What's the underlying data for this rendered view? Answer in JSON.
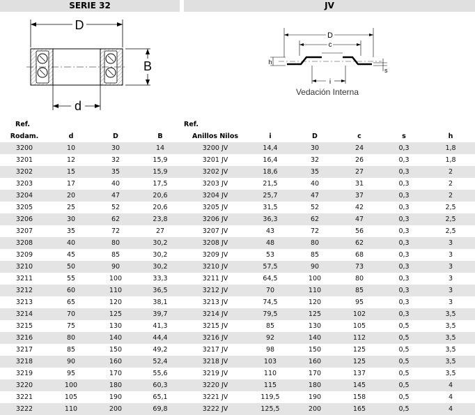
{
  "left_title": "SERIE 32",
  "right_title": "JV",
  "left_drawing": {
    "label_outer": "D",
    "label_height": "B",
    "label_inner": "d"
  },
  "right_drawing": {
    "label_outer": "D",
    "label_c": "c",
    "label_h": "h",
    "label_i": "i",
    "label_s": "s",
    "caption": "Vedación Interna"
  },
  "header_row1": {
    "ref_left": "Ref.",
    "ref_right": "Ref."
  },
  "header_row2": [
    "Rodam.",
    "d",
    "D",
    "B",
    "Anillos Nilos",
    "i",
    "D",
    "c",
    "s",
    "h"
  ],
  "rows": [
    [
      "3200",
      "10",
      "30",
      "14",
      "3200 JV",
      "14,4",
      "30",
      "24",
      "0,3",
      "1,8"
    ],
    [
      "3201",
      "12",
      "32",
      "15,9",
      "3201 JV",
      "16,4",
      "32",
      "26",
      "0,3",
      "1,8"
    ],
    [
      "3202",
      "15",
      "35",
      "15,9",
      "3202 JV",
      "18,6",
      "35",
      "27",
      "0,3",
      "2"
    ],
    [
      "3203",
      "17",
      "40",
      "17,5",
      "3203 JV",
      "21,5",
      "40",
      "31",
      "0,3",
      "2"
    ],
    [
      "3204",
      "20",
      "47",
      "20,6",
      "3204 JV",
      "25,7",
      "47",
      "37",
      "0,3",
      "2"
    ],
    [
      "3205",
      "25",
      "52",
      "20,6",
      "3205 JV",
      "31,5",
      "52",
      "42",
      "0,3",
      "2,5"
    ],
    [
      "3206",
      "30",
      "62",
      "23,8",
      "3206 JV",
      "36,3",
      "62",
      "47",
      "0,3",
      "2,5"
    ],
    [
      "3207",
      "35",
      "72",
      "27",
      "3207 JV",
      "43",
      "72",
      "56",
      "0,3",
      "2,5"
    ],
    [
      "3208",
      "40",
      "80",
      "30,2",
      "3208 JV",
      "48",
      "80",
      "62",
      "0,3",
      "3"
    ],
    [
      "3209",
      "45",
      "85",
      "30,2",
      "3209 JV",
      "53",
      "85",
      "68",
      "0,3",
      "3"
    ],
    [
      "3210",
      "50",
      "90",
      "30,2",
      "3210 JV",
      "57,5",
      "90",
      "73",
      "0,3",
      "3"
    ],
    [
      "3211",
      "55",
      "100",
      "33,3",
      "3211 JV",
      "64,5",
      "100",
      "80",
      "0,3",
      "3"
    ],
    [
      "3212",
      "60",
      "110",
      "36,5",
      "3212 JV",
      "70",
      "110",
      "85",
      "0,3",
      "3"
    ],
    [
      "3213",
      "65",
      "120",
      "38,1",
      "3213 JV",
      "74,5",
      "120",
      "95",
      "0,3",
      "3"
    ],
    [
      "3214",
      "70",
      "125",
      "39,7",
      "3214 JV",
      "79,5",
      "125",
      "102",
      "0,3",
      "3,5"
    ],
    [
      "3215",
      "75",
      "130",
      "41,3",
      "3215 JV",
      "85",
      "130",
      "105",
      "0,5",
      "3,5"
    ],
    [
      "3216",
      "80",
      "140",
      "44,4",
      "3216 JV",
      "92",
      "140",
      "112",
      "0,5",
      "3,5"
    ],
    [
      "3217",
      "85",
      "150",
      "49,2",
      "3217 JV",
      "98",
      "150",
      "125",
      "0,5",
      "3,5"
    ],
    [
      "3218",
      "90",
      "160",
      "52,4",
      "3218 JV",
      "103",
      "160",
      "125",
      "0,5",
      "3,5"
    ],
    [
      "3219",
      "95",
      "170",
      "55,6",
      "3219 JV",
      "110",
      "170",
      "137",
      "0,5",
      "3,5"
    ],
    [
      "3220",
      "100",
      "180",
      "60,3",
      "3220 JV",
      "115",
      "180",
      "145",
      "0,5",
      "4"
    ],
    [
      "3221",
      "105",
      "190",
      "65,1",
      "3221 JV",
      "119,5",
      "190",
      "158",
      "0,5",
      "4"
    ],
    [
      "3222",
      "110",
      "200",
      "69,8",
      "3222 JV",
      "125,5",
      "200",
      "165",
      "0,5",
      "4"
    ]
  ]
}
